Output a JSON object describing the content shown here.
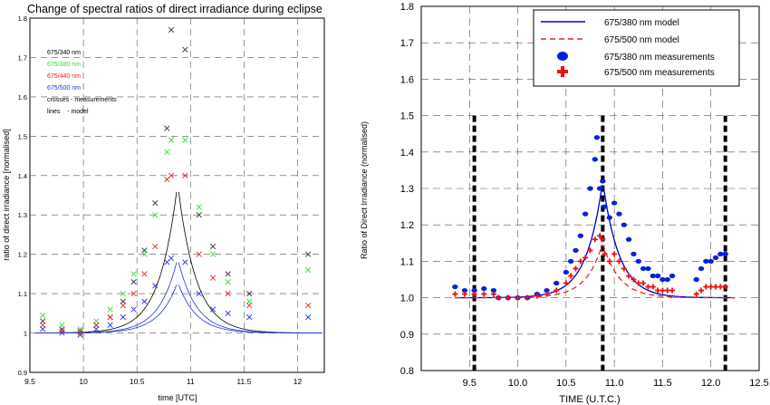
{
  "chart_data": [
    {
      "type": "scatter",
      "title": "Change of spectral ratios of direct irradiance during eclipse",
      "xlabel": "time [UTC]",
      "ylabel": "ratio of direct irradiance [normalised]",
      "xlim": [
        9.5,
        12.25
      ],
      "ylim": [
        0.9,
        1.8
      ],
      "xticks": [
        "9.5",
        "10",
        "10.5",
        "11",
        "11.5",
        "12"
      ],
      "yticks": [
        "0.9",
        "1",
        "1.1",
        "1.2",
        "1.3",
        "1.4",
        "1.5",
        "1.6",
        "1.7",
        "1.8"
      ],
      "grid": true,
      "legend": {
        "placement": "top-left",
        "entries": [
          {
            "label": "675/340 nm",
            "color": "#333333"
          },
          {
            "label": "675/380 nm",
            "color": "#33dd33"
          },
          {
            "label": "675/440 nm",
            "color": "#ee2222"
          },
          {
            "label": "675/500 nm",
            "color": "#2233dd"
          }
        ],
        "notes": [
          "crosses - measurements",
          "lines    - model"
        ]
      },
      "series": [
        {
          "name": "675/340 nm",
          "color": "#333333",
          "x": [
            9.62,
            9.8,
            9.97,
            10.12,
            10.25,
            10.37,
            10.47,
            10.57,
            10.67,
            10.78,
            10.82,
            10.95,
            11.08,
            11.21,
            11.35,
            11.55,
            12.1
          ],
          "y": [
            1.03,
            1.01,
            1.005,
            1.02,
            1.04,
            1.08,
            1.13,
            1.21,
            1.33,
            1.52,
            1.77,
            1.72,
            1.3,
            1.22,
            1.15,
            1.1,
            1.2
          ]
        },
        {
          "name": "675/380 nm",
          "color": "#33dd33",
          "x": [
            9.62,
            9.8,
            9.97,
            10.12,
            10.25,
            10.37,
            10.47,
            10.57,
            10.67,
            10.78,
            10.82,
            10.95,
            11.08,
            11.21,
            11.35,
            11.55,
            12.1
          ],
          "y": [
            1.045,
            1.02,
            1.01,
            1.03,
            1.06,
            1.1,
            1.15,
            1.2,
            1.3,
            1.46,
            1.49,
            1.49,
            1.32,
            1.2,
            1.13,
            1.08,
            1.16
          ]
        },
        {
          "name": "675/440 nm",
          "color": "#ee2222",
          "x": [
            9.62,
            9.8,
            9.97,
            10.12,
            10.25,
            10.37,
            10.47,
            10.57,
            10.67,
            10.78,
            10.82,
            10.95,
            11.08,
            11.21,
            11.35,
            11.55,
            12.1
          ],
          "y": [
            1.02,
            1.005,
            1.0,
            1.02,
            1.04,
            1.07,
            1.1,
            1.15,
            1.22,
            1.39,
            1.4,
            1.4,
            1.2,
            1.14,
            1.1,
            1.07,
            1.07
          ]
        },
        {
          "name": "675/500 nm",
          "color": "#2233dd",
          "x": [
            9.62,
            9.8,
            9.97,
            10.12,
            10.25,
            10.37,
            10.47,
            10.57,
            10.67,
            10.78,
            10.82,
            10.95,
            11.08,
            11.21,
            11.35,
            11.55,
            12.1
          ],
          "y": [
            1.01,
            1.0,
            0.995,
            1.01,
            1.02,
            1.04,
            1.06,
            1.08,
            1.12,
            1.18,
            1.19,
            1.18,
            1.1,
            1.06,
            1.05,
            1.04,
            1.04
          ]
        }
      ],
      "model_lines": [
        {
          "color": "#000000",
          "peak_x": 10.88,
          "peak_y": 1.38
        },
        {
          "color": "#2233dd",
          "peak_x": 10.88,
          "peak_y": 1.19
        },
        {
          "color": "#2233dd",
          "peak_x": 10.88,
          "peak_y": 1.13
        }
      ]
    },
    {
      "type": "scatter",
      "title": "",
      "xlabel": "TIME (U.T.C.)",
      "ylabel": "Ratio of Direct Irradiance (normalised)",
      "xlim": [
        9.0,
        12.5
      ],
      "ylim": [
        0.8,
        1.8
      ],
      "xticks": [
        "9.5",
        "10.0",
        "10.5",
        "11.0",
        "11.5",
        "12.0",
        "12.5"
      ],
      "yticks": [
        "0.8",
        "0.9",
        "1.0",
        "1.1",
        "1.2",
        "1.3",
        "1.4",
        "1.5",
        "1.6",
        "1.7",
        "1.8"
      ],
      "grid": true,
      "legend": {
        "placement": "top-center",
        "entries": [
          {
            "label": "675/380 nm model",
            "color": "#0000cc",
            "marker": "line"
          },
          {
            "label": "675/500 nm model",
            "color": "#ee2222",
            "marker": "dashed"
          },
          {
            "label": "675/380 nm measurements",
            "color": "#0022dd",
            "marker": "dot"
          },
          {
            "label": "675/500 nm measurements",
            "color": "#ee1111",
            "marker": "plus"
          }
        ]
      },
      "vertical_markers": [
        9.55,
        10.88,
        12.15
      ],
      "vertical_marker_top": 1.5,
      "series": [
        {
          "name": "675/380 nm measurements",
          "color": "#0022dd",
          "x": [
            9.35,
            9.45,
            9.55,
            9.65,
            9.75,
            9.8,
            9.9,
            10.0,
            10.1,
            10.2,
            10.3,
            10.4,
            10.5,
            10.55,
            10.6,
            10.65,
            10.7,
            10.75,
            10.8,
            10.82,
            10.85,
            10.88,
            10.9,
            10.95,
            11.0,
            11.05,
            11.1,
            11.15,
            11.2,
            11.25,
            11.3,
            11.35,
            11.4,
            11.45,
            11.5,
            11.55,
            11.6,
            11.85,
            11.9,
            11.95,
            12.0,
            12.05,
            12.1,
            12.15
          ],
          "y": [
            1.03,
            1.02,
            1.02,
            1.025,
            1.02,
            1.0,
            1.0,
            1.0,
            1.0,
            1.01,
            1.02,
            1.04,
            1.07,
            1.1,
            1.13,
            1.17,
            1.23,
            1.3,
            1.38,
            1.44,
            1.3,
            1.32,
            1.25,
            1.22,
            1.26,
            1.23,
            1.2,
            1.16,
            1.12,
            1.1,
            1.08,
            1.08,
            1.06,
            1.06,
            1.05,
            1.05,
            1.06,
            1.05,
            1.08,
            1.1,
            1.1,
            1.11,
            1.12,
            1.12
          ]
        },
        {
          "name": "675/500 nm measurements",
          "color": "#ee1111",
          "x": [
            9.35,
            9.45,
            9.55,
            9.65,
            9.75,
            9.8,
            9.9,
            10.0,
            10.1,
            10.2,
            10.3,
            10.4,
            10.5,
            10.55,
            10.6,
            10.65,
            10.7,
            10.75,
            10.8,
            10.85,
            10.88,
            10.9,
            10.95,
            11.0,
            11.05,
            11.1,
            11.15,
            11.2,
            11.25,
            11.3,
            11.35,
            11.4,
            11.45,
            11.5,
            11.55,
            11.6,
            11.85,
            11.9,
            11.95,
            12.0,
            12.05,
            12.1,
            12.15
          ],
          "y": [
            1.01,
            1.01,
            1.01,
            1.01,
            1.01,
            1.0,
            1.0,
            1.0,
            1.0,
            1.005,
            1.01,
            1.02,
            1.04,
            1.06,
            1.08,
            1.1,
            1.11,
            1.13,
            1.16,
            1.17,
            1.16,
            1.12,
            1.1,
            1.12,
            1.1,
            1.08,
            1.06,
            1.05,
            1.04,
            1.04,
            1.03,
            1.03,
            1.02,
            1.02,
            1.02,
            1.02,
            1.01,
            1.02,
            1.03,
            1.03,
            1.03,
            1.03,
            1.03
          ]
        }
      ],
      "model_lines": [
        {
          "name": "675/380 nm model",
          "color": "#0000cc",
          "style": "solid",
          "peak_x": 10.88,
          "peak_y": 1.32
        },
        {
          "name": "675/500 nm model",
          "color": "#ee2222",
          "style": "dashed",
          "peak_x": 10.88,
          "peak_y": 1.15
        }
      ]
    }
  ]
}
